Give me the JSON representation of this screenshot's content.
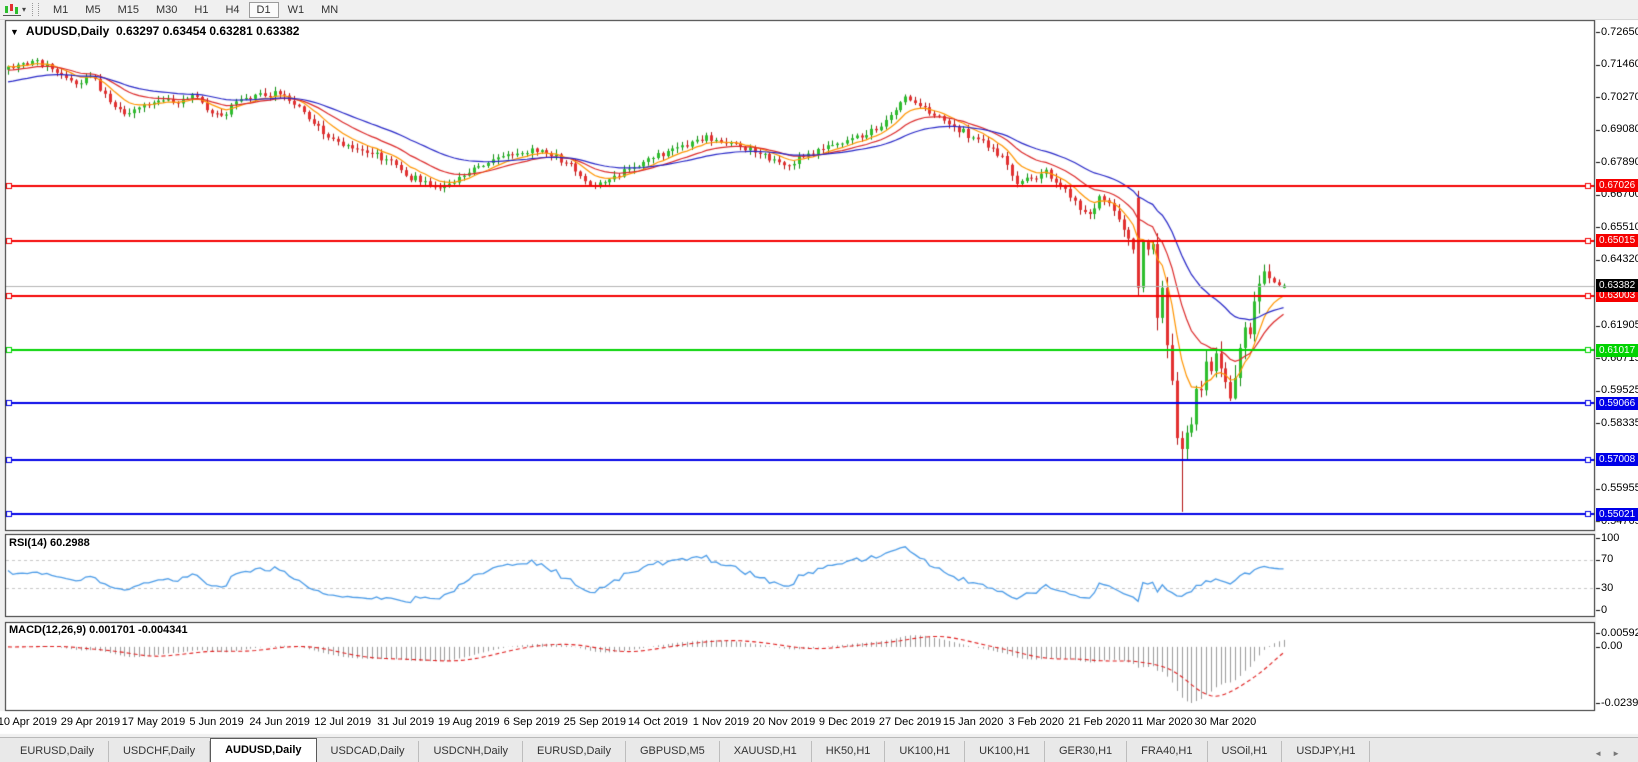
{
  "toolbar": {
    "timeframes": [
      {
        "label": "M1",
        "active": false
      },
      {
        "label": "M5",
        "active": false
      },
      {
        "label": "M15",
        "active": false
      },
      {
        "label": "M30",
        "active": false
      },
      {
        "label": "H1",
        "active": false
      },
      {
        "label": "H4",
        "active": false
      },
      {
        "label": "D1",
        "active": true
      },
      {
        "label": "W1",
        "active": false
      },
      {
        "label": "MN",
        "active": false
      }
    ],
    "dropdown_icon": "▾"
  },
  "chart": {
    "collapse_icon": "▼",
    "title": "AUDUSD,Daily",
    "ohlc": "0.63297 0.63454 0.63281 0.63382"
  },
  "chart_data": {
    "type": "candlestick",
    "symbol": "AUDUSD",
    "timeframe": "Daily",
    "last_candle_ohlc": {
      "open": 0.63297,
      "high": 0.63454,
      "low": 0.63281,
      "close": 0.63382
    },
    "candle_count": 264,
    "seed": 20200414,
    "price_axis": {
      "top": 0.731,
      "bottom": 0.544,
      "ticks": [
        0.7265,
        0.7146,
        0.7027,
        0.6908,
        0.6789,
        0.667,
        0.6551,
        0.6432,
        0.61905,
        0.60715,
        0.59525,
        0.58335,
        0.55955,
        0.54765
      ]
    },
    "x_labels": [
      "10 Apr 2019",
      "29 Apr 2019",
      "17 May 2019",
      "5 Jun 2019",
      "24 Jun 2019",
      "12 Jul 2019",
      "31 Jul 2019",
      "19 Aug 2019",
      "6 Sep 2019",
      "25 Sep 2019",
      "14 Oct 2019",
      "1 Nov 2019",
      "20 Nov 2019",
      "9 Dec 2019",
      "27 Dec 2019",
      "15 Jan 2020",
      "3 Feb 2020",
      "21 Feb 2020",
      "11 Mar 2020",
      "30 Mar 2020"
    ],
    "x_label_step": 13,
    "close_anchors": [
      [
        0,
        0.714
      ],
      [
        3,
        0.7152
      ],
      [
        6,
        0.7163
      ],
      [
        9,
        0.713
      ],
      [
        12,
        0.7098
      ],
      [
        14,
        0.7075
      ],
      [
        17,
        0.7105
      ],
      [
        20,
        0.704
      ],
      [
        24,
        0.6965
      ],
      [
        27,
        0.699
      ],
      [
        31,
        0.7015
      ],
      [
        34,
        0.7008
      ],
      [
        38,
        0.7035
      ],
      [
        41,
        0.698
      ],
      [
        44,
        0.696
      ],
      [
        48,
        0.702
      ],
      [
        52,
        0.7042
      ],
      [
        56,
        0.7038
      ],
      [
        59,
        0.7
      ],
      [
        63,
        0.693
      ],
      [
        67,
        0.6875
      ],
      [
        71,
        0.684
      ],
      [
        75,
        0.682
      ],
      [
        78,
        0.68
      ],
      [
        82,
        0.674
      ],
      [
        86,
        0.672
      ],
      [
        89,
        0.6695
      ],
      [
        92,
        0.6715
      ],
      [
        96,
        0.677
      ],
      [
        100,
        0.68
      ],
      [
        104,
        0.6815
      ],
      [
        108,
        0.684
      ],
      [
        112,
        0.6812
      ],
      [
        116,
        0.6785
      ],
      [
        119,
        0.672
      ],
      [
        121,
        0.67
      ],
      [
        125,
        0.674
      ],
      [
        129,
        0.677
      ],
      [
        133,
        0.6805
      ],
      [
        137,
        0.684
      ],
      [
        141,
        0.6865
      ],
      [
        144,
        0.6888
      ],
      [
        147,
        0.6862
      ],
      [
        151,
        0.6845
      ],
      [
        155,
        0.682
      ],
      [
        158,
        0.68
      ],
      [
        161,
        0.6778
      ],
      [
        164,
        0.681
      ],
      [
        168,
        0.6838
      ],
      [
        172,
        0.6858
      ],
      [
        176,
        0.688
      ],
      [
        180,
        0.692
      ],
      [
        183,
        0.698
      ],
      [
        185,
        0.703
      ],
      [
        188,
        0.6995
      ],
      [
        191,
        0.696
      ],
      [
        195,
        0.692
      ],
      [
        199,
        0.688
      ],
      [
        203,
        0.684
      ],
      [
        206,
        0.678
      ],
      [
        208,
        0.671
      ],
      [
        211,
        0.673
      ],
      [
        214,
        0.6762
      ],
      [
        217,
        0.67
      ],
      [
        219,
        0.666
      ],
      [
        221,
        0.6615
      ],
      [
        223,
        0.66
      ],
      [
        225,
        0.6665
      ],
      [
        227,
        0.664
      ],
      [
        229,
        0.658
      ],
      [
        231,
        0.651
      ],
      [
        232,
        0.647
      ],
      [
        233,
        0.633
      ],
      [
        234,
        0.65
      ],
      [
        235,
        0.647
      ],
      [
        236,
        0.649
      ],
      [
        237,
        0.622
      ],
      [
        238,
        0.633
      ],
      [
        239,
        0.612
      ],
      [
        240,
        0.599
      ],
      [
        241,
        0.578
      ],
      [
        242,
        0.574
      ],
      [
        243,
        0.58
      ],
      [
        244,
        0.583
      ],
      [
        245,
        0.596
      ],
      [
        246,
        0.5955
      ],
      [
        247,
        0.606
      ],
      [
        248,
        0.6025
      ],
      [
        249,
        0.609
      ],
      [
        250,
        0.6035
      ],
      [
        251,
        0.5985
      ],
      [
        252,
        0.5925
      ],
      [
        253,
        0.6
      ],
      [
        254,
        0.611
      ],
      [
        255,
        0.6185
      ],
      [
        256,
        0.616
      ],
      [
        257,
        0.628
      ],
      [
        258,
        0.6345
      ],
      [
        259,
        0.639
      ],
      [
        260,
        0.6365
      ],
      [
        261,
        0.635
      ],
      [
        262,
        0.634
      ],
      [
        263,
        0.63382
      ]
    ],
    "explicit_candles": {
      "233": [
        0.666,
        0.6685,
        0.63,
        0.633
      ],
      "242": [
        0.578,
        0.5805,
        0.551,
        0.574
      ],
      "263": [
        0.63297,
        0.63454,
        0.63281,
        0.63382
      ]
    },
    "candle_colors": {
      "up_fill": "#2EBE2E",
      "up_stroke": "#149014",
      "down_fill": "#E33030",
      "down_stroke": "#B31414"
    },
    "moving_averages": [
      {
        "period": 8,
        "color": "#FF9500",
        "init": null
      },
      {
        "period": 17,
        "color": "#DC2A2A",
        "init": 0.7125
      },
      {
        "period": 34,
        "color": "#2828C8",
        "init": 0.708
      }
    ],
    "levels": [
      {
        "price": 0.67026,
        "color": "#F50000"
      },
      {
        "price": 0.65015,
        "color": "#F50000"
      },
      {
        "price": 0.63003,
        "color": "#F50000"
      },
      {
        "price": 0.61017,
        "color": "#00D300"
      },
      {
        "price": 0.59066,
        "color": "#0000E8"
      },
      {
        "price": 0.57008,
        "color": "#0000E8"
      },
      {
        "price": 0.55021,
        "color": "#0000E8"
      }
    ],
    "current_price": {
      "price": 0.63382,
      "line_color": "#B4B4B4",
      "label_bg": "#000000"
    },
    "rsi": {
      "label": "RSI(14)",
      "value": "60.2988",
      "period": 14,
      "color": "#4C9CE8",
      "level_line_color": "#C8C8C8",
      "levels": [
        70,
        30
      ],
      "ticks": [
        {
          "v": 100,
          "label": "100"
        },
        {
          "v": 70,
          "label": "70"
        },
        {
          "v": 30,
          "label": "30"
        },
        {
          "v": 0,
          "label": "0"
        }
      ]
    },
    "macd": {
      "label": "MACD(12,26,9)",
      "value_main": "0.001701",
      "value_signal": "-0.004341",
      "fast": 12,
      "slow": 26,
      "signal": 9,
      "hist_color": "#9C9C9C",
      "signal_color": "#E02020",
      "axis_max": 0.005923,
      "axis_min": -0.02394,
      "ticks": [
        {
          "v": 0.005923,
          "label": "0.005923"
        },
        {
          "v": 0,
          "label": "0.00"
        },
        {
          "v": -0.02394,
          "label": "-0.02394"
        }
      ]
    }
  },
  "tabs": {
    "items": [
      "EURUSD,Daily",
      "USDCHF,Daily",
      "AUDUSD,Daily",
      "USDCAD,Daily",
      "USDCNH,Daily",
      "EURUSD,Daily",
      "GBPUSD,M5",
      "XAUUSD,H1",
      "HK50,H1",
      "UK100,H1",
      "UK100,H1",
      "GER30,H1",
      "FRA40,H1",
      "USOil,H1",
      "USDJPY,H1"
    ],
    "active_index": 2,
    "scroll_left_icon": "◄",
    "scroll_right_icon": "►"
  }
}
